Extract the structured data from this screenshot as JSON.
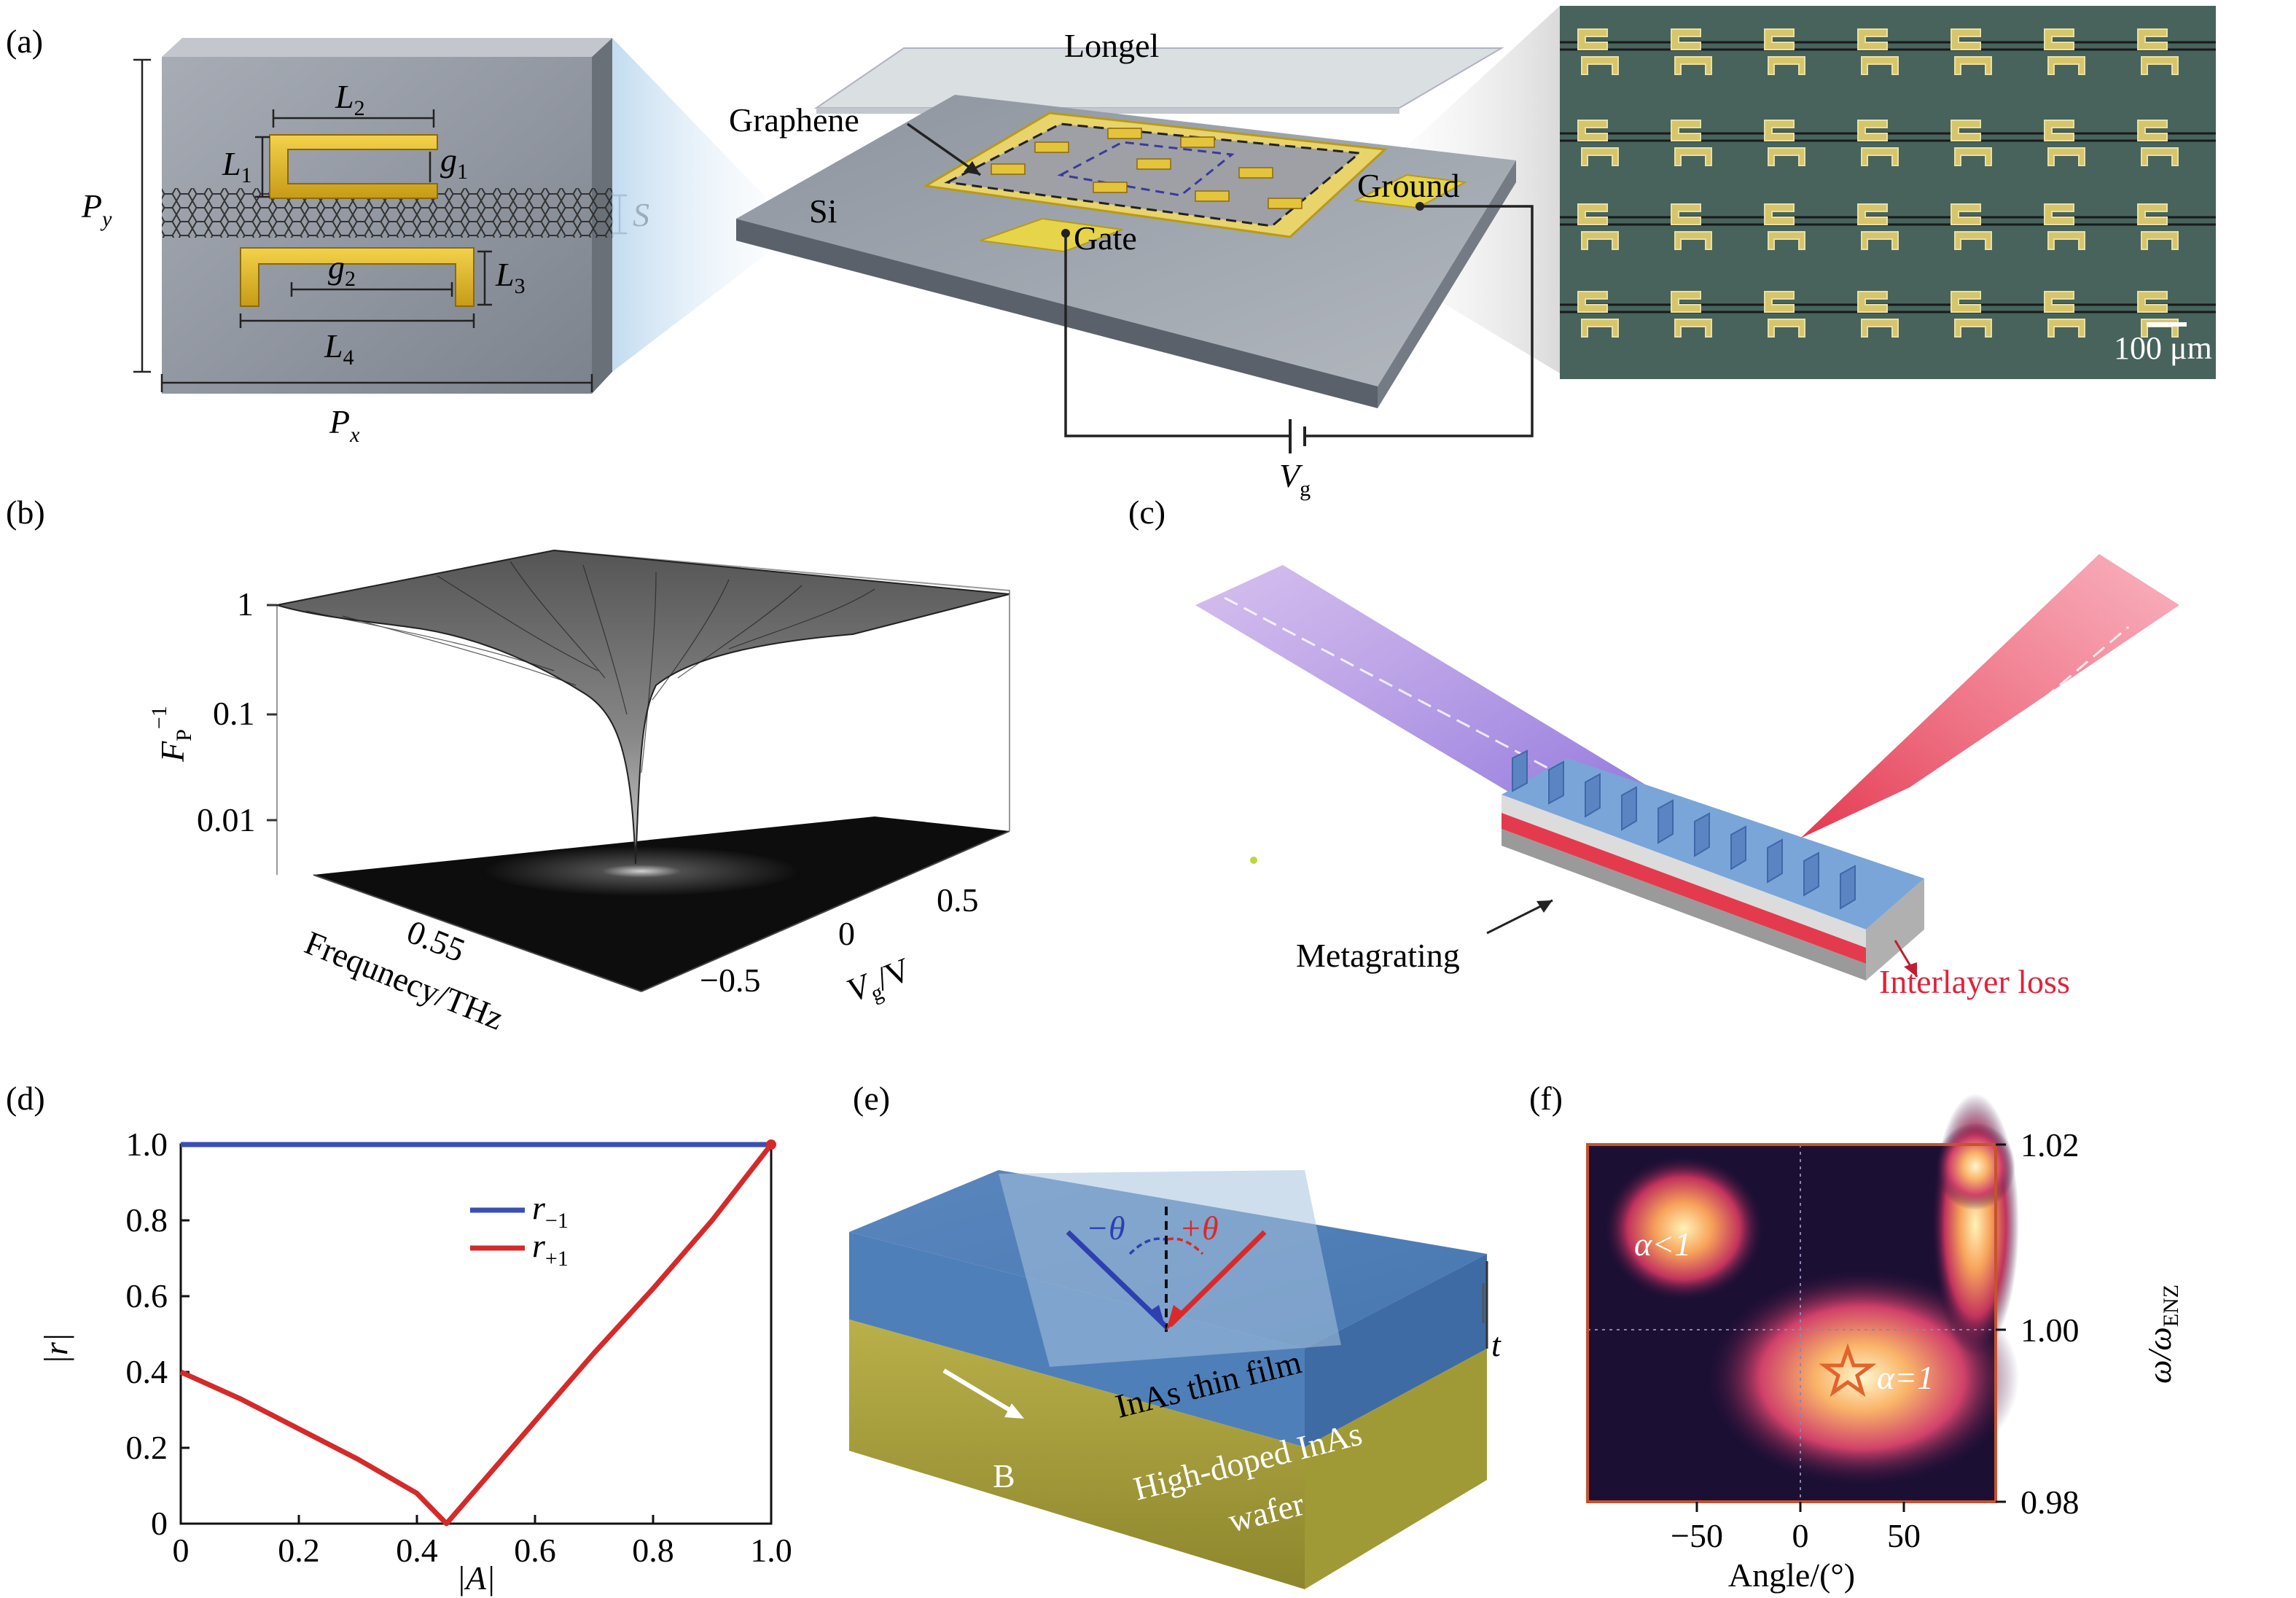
{
  "panel_labels": {
    "a": "(a)",
    "b": "(b)",
    "c": "(c)",
    "d": "(d)",
    "e": "(e)",
    "f": "(f)"
  },
  "panel_a": {
    "unit_cell": {
      "L1": "L",
      "L1_sub": "1",
      "L2": "L",
      "L2_sub": "2",
      "L3": "L",
      "L3_sub": "3",
      "L4": "L",
      "L4_sub": "4",
      "g1": "g",
      "g1_sub": "1",
      "g2": "g",
      "g2_sub": "2",
      "S": "S",
      "Px": "P",
      "Px_sub": "x",
      "Py": "P",
      "Py_sub": "y"
    },
    "device": {
      "longel": "Longel",
      "graphene": "Graphene",
      "si": "Si",
      "gate": "Gate",
      "ground": "Ground",
      "vg": "V",
      "vg_sub": "g"
    },
    "micrograph": {
      "scale_bar": "100 μm"
    }
  },
  "panel_b": {
    "z_ticks": [
      "1",
      "0.1",
      "0.01"
    ],
    "z_label": "F",
    "z_label_sub": "P",
    "z_label_sup": "−1",
    "freq_tick": "0.55",
    "freq_label": "Frequnecy/THz",
    "v_ticks": [
      "−0.5",
      "0",
      "0.5"
    ],
    "v_label": "V",
    "v_label_sub": "g",
    "v_label_tail": "/V"
  },
  "panel_c": {
    "metagrating": "Metagrating",
    "interlayer_loss": "Interlayer loss",
    "loss_color": "#e0233c"
  },
  "panel_d": {
    "chart_data": {
      "type": "line",
      "xlabel": "|A|",
      "ylabel": "|r|",
      "xlim": [
        0,
        1.0
      ],
      "ylim": [
        0,
        1.0
      ],
      "xticks": [
        "0",
        "0.2",
        "0.4",
        "0.6",
        "0.8",
        "1.0"
      ],
      "yticks": [
        "0",
        "0.2",
        "0.4",
        "0.6",
        "0.8",
        "1.0"
      ],
      "series": [
        {
          "name": "r",
          "name_sub": "−1",
          "color": "#3a4fb4",
          "x": [
            0,
            0.2,
            0.4,
            0.45,
            0.6,
            0.8,
            1.0
          ],
          "y": [
            1.0,
            1.0,
            1.0,
            1.0,
            1.0,
            1.0,
            1.0
          ]
        },
        {
          "name": "r",
          "name_sub": "+1",
          "color": "#d42a2a",
          "x": [
            0,
            0.1,
            0.2,
            0.3,
            0.4,
            0.45,
            0.5,
            0.6,
            0.7,
            0.8,
            0.9,
            1.0
          ],
          "y": [
            0.4,
            0.33,
            0.25,
            0.17,
            0.08,
            0.0,
            0.09,
            0.27,
            0.45,
            0.62,
            0.8,
            1.0
          ]
        }
      ],
      "legend_position": "top-right"
    }
  },
  "panel_e": {
    "minus_theta": "−θ",
    "plus_theta": "+θ",
    "film": "InAs thin film",
    "wafer_line1": "High-doped InAs",
    "wafer_line2": "wafer",
    "t": "t",
    "b": "B"
  },
  "panel_f": {
    "chart_data": {
      "type": "heatmap",
      "xlabel": "Angle/(°)",
      "ylabel": "ω/ω",
      "ylabel_sub": "ENZ",
      "xticks": [
        "−50",
        "0",
        "50"
      ],
      "yticks": [
        "1.02",
        "1.00",
        "0.98"
      ],
      "annotations": [
        "α<1",
        "α=1"
      ]
    }
  }
}
